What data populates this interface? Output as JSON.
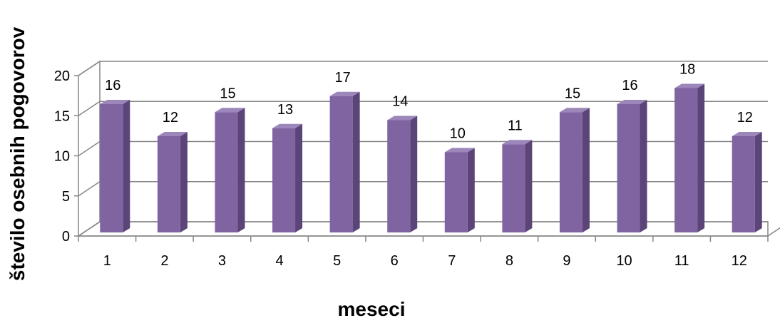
{
  "chart_data": {
    "type": "bar",
    "title": "",
    "xlabel": "meseci",
    "ylabel": "število osebnih pogovorov",
    "categories": [
      "1",
      "2",
      "3",
      "4",
      "5",
      "6",
      "7",
      "8",
      "9",
      "10",
      "11",
      "12"
    ],
    "values": [
      16,
      12,
      15,
      13,
      17,
      14,
      10,
      11,
      15,
      16,
      18,
      12
    ],
    "ylim": [
      0,
      20
    ],
    "yticks": [
      "0",
      "5",
      "10",
      "15",
      "20"
    ],
    "grid": true,
    "three_d": true,
    "legend": "none",
    "colors": {
      "bar_front": "#8064A2",
      "bar_side": "#5B4478",
      "bar_top": "#9D86BA",
      "grid": "#868686",
      "wall": "#ffffff"
    }
  }
}
